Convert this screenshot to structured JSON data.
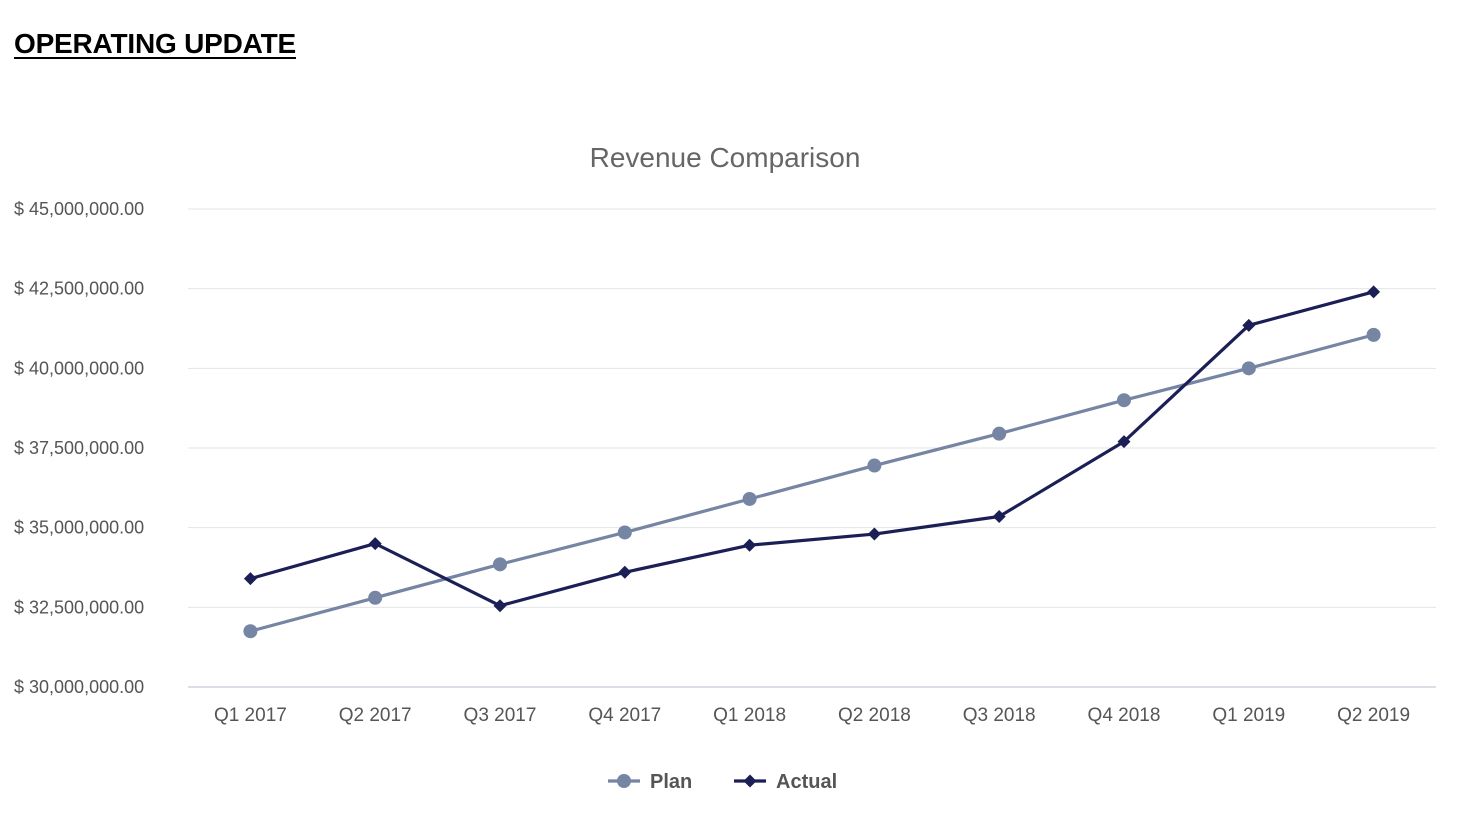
{
  "page": {
    "heading": "OPERATING UPDATE"
  },
  "chart_data": {
    "type": "line",
    "title": "Revenue Comparison",
    "xlabel": "",
    "ylabel": "",
    "categories": [
      "Q1 2017",
      "Q2 2017",
      "Q3 2017",
      "Q4 2017",
      "Q1 2018",
      "Q2 2018",
      "Q3 2018",
      "Q4 2018",
      "Q1 2019",
      "Q2 2019"
    ],
    "ylim": [
      30000000,
      45000000
    ],
    "y_ticks": [
      30000000,
      32500000,
      35000000,
      37500000,
      40000000,
      42500000,
      45000000
    ],
    "y_tick_labels": [
      "$ 30,000,000.00",
      "$ 32,500,000.00",
      "$ 35,000,000.00",
      "$ 37,500,000.00",
      "$ 40,000,000.00",
      "$ 42,500,000.00",
      "$ 45,000,000.00"
    ],
    "grid": true,
    "legend_position": "bottom",
    "series": [
      {
        "name": "Plan",
        "color": "#7585a3",
        "marker": "circle",
        "values": [
          31750000,
          32800000,
          33850000,
          34850000,
          35900000,
          36950000,
          37950000,
          39000000,
          40000000,
          41050000
        ]
      },
      {
        "name": "Actual",
        "color": "#1b1f56",
        "marker": "diamond",
        "values": [
          33400000,
          34500000,
          32550000,
          33600000,
          34450000,
          34800000,
          35350000,
          37700000,
          41350000,
          42400000
        ]
      }
    ]
  }
}
